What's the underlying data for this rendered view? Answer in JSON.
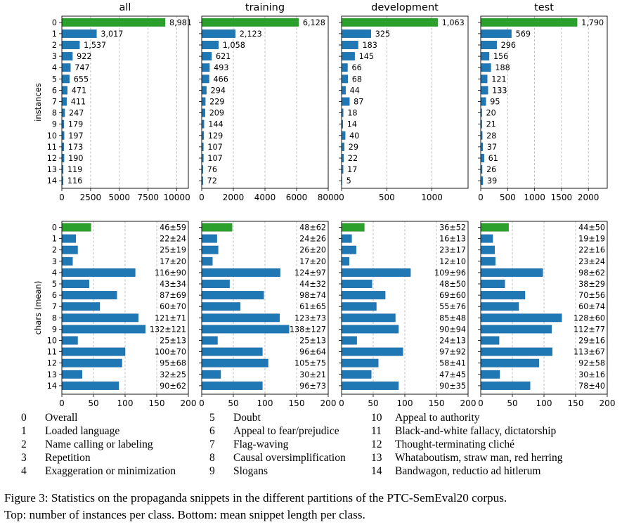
{
  "chart_data": [
    {
      "type": "bar",
      "panel": "top",
      "orientation": "horizontal",
      "title": "all",
      "ylabel": "instances",
      "categories": [
        "0",
        "1",
        "2",
        "3",
        "4",
        "5",
        "6",
        "7",
        "8",
        "9",
        "10",
        "11",
        "12",
        "13",
        "14"
      ],
      "values": [
        8981,
        3017,
        1537,
        922,
        747,
        655,
        471,
        411,
        247,
        179,
        197,
        173,
        190,
        119,
        116
      ],
      "value_labels": [
        "8,981",
        "3,017",
        "1,537",
        "922",
        "747",
        "655",
        "471",
        "411",
        "247",
        "179",
        "197",
        "173",
        "190",
        "119",
        "116"
      ],
      "xlim": [
        0,
        11000
      ],
      "xticks": [
        0,
        2500,
        5000,
        7500,
        10000
      ],
      "xtick_labels": [
        "0",
        "2500",
        "5000",
        "7500",
        "10000"
      ],
      "grid": "vertical-dashed"
    },
    {
      "type": "bar",
      "panel": "top",
      "orientation": "horizontal",
      "title": "training",
      "categories": [
        "0",
        "1",
        "2",
        "3",
        "4",
        "5",
        "6",
        "7",
        "8",
        "9",
        "10",
        "11",
        "12",
        "13",
        "14"
      ],
      "values": [
        6128,
        2123,
        1058,
        621,
        493,
        466,
        294,
        229,
        209,
        144,
        129,
        107,
        107,
        76,
        72
      ],
      "value_labels": [
        "6,128",
        "2,123",
        "1,058",
        "621",
        "493",
        "466",
        "294",
        "229",
        "209",
        "144",
        "129",
        "107",
        "107",
        "76",
        "72"
      ],
      "xlim": [
        0,
        8000
      ],
      "xticks": [
        0,
        2000,
        4000,
        6000,
        8000
      ],
      "xtick_labels": [
        "0",
        "2000",
        "4000",
        "6000",
        "8000"
      ],
      "grid": "vertical-dashed"
    },
    {
      "type": "bar",
      "panel": "top",
      "orientation": "horizontal",
      "title": "development",
      "categories": [
        "0",
        "1",
        "2",
        "3",
        "4",
        "5",
        "6",
        "7",
        "8",
        "9",
        "10",
        "11",
        "12",
        "13",
        "14"
      ],
      "values": [
        1063,
        325,
        183,
        145,
        66,
        68,
        44,
        87,
        18,
        14,
        40,
        29,
        22,
        17,
        5
      ],
      "value_labels": [
        "1,063",
        "325",
        "183",
        "145",
        "66",
        "68",
        "44",
        "87",
        "18",
        "14",
        "40",
        "29",
        "22",
        "17",
        "5"
      ],
      "xlim": [
        0,
        1400
      ],
      "xticks": [
        0,
        500,
        1000
      ],
      "xtick_labels": [
        "0",
        "500",
        "1000"
      ],
      "grid": "vertical-dashed"
    },
    {
      "type": "bar",
      "panel": "top",
      "orientation": "horizontal",
      "title": "test",
      "categories": [
        "0",
        "1",
        "2",
        "3",
        "4",
        "5",
        "6",
        "7",
        "8",
        "9",
        "10",
        "11",
        "12",
        "13",
        "14"
      ],
      "values": [
        1790,
        569,
        296,
        156,
        188,
        121,
        133,
        95,
        20,
        21,
        28,
        37,
        61,
        26,
        39
      ],
      "value_labels": [
        "1,790",
        "569",
        "296",
        "156",
        "188",
        "121",
        "133",
        "95",
        "20",
        "21",
        "28",
        "37",
        "61",
        "26",
        "39"
      ],
      "xlim": [
        0,
        2350
      ],
      "xticks": [
        0,
        500,
        1000,
        1500,
        2000
      ],
      "xtick_labels": [
        "0",
        "500",
        "1000",
        "1500",
        "2000"
      ],
      "grid": "vertical-dashed"
    },
    {
      "type": "bar",
      "panel": "bottom",
      "orientation": "horizontal",
      "ylabel": "chars (mean)",
      "categories": [
        "0",
        "1",
        "2",
        "3",
        "4",
        "5",
        "6",
        "7",
        "8",
        "9",
        "10",
        "11",
        "12",
        "13",
        "14"
      ],
      "values": [
        46,
        22,
        25,
        17,
        116,
        43,
        87,
        60,
        121,
        132,
        25,
        100,
        95,
        32,
        90
      ],
      "value_labels": [
        "46±59",
        "22±24",
        "25±19",
        "17±20",
        "116±90",
        "43±34",
        "87±69",
        "60±70",
        "121±71",
        "132±121",
        "25±13",
        "100±70",
        "95±68",
        "32±25",
        "90±62"
      ],
      "xlim": [
        0,
        200
      ],
      "xticks": [
        0,
        50,
        100,
        150,
        200
      ],
      "xtick_labels": [
        "0",
        "50",
        "100",
        "150",
        "200"
      ],
      "grid": "vertical-dashed"
    },
    {
      "type": "bar",
      "panel": "bottom",
      "orientation": "horizontal",
      "categories": [
        "0",
        "1",
        "2",
        "3",
        "4",
        "5",
        "6",
        "7",
        "8",
        "9",
        "10",
        "11",
        "12",
        "13",
        "14"
      ],
      "values": [
        48,
        24,
        26,
        17,
        124,
        44,
        98,
        61,
        123,
        138,
        25,
        96,
        105,
        30,
        96
      ],
      "value_labels": [
        "48±62",
        "24±26",
        "26±20",
        "17±20",
        "124±97",
        "44±32",
        "98±74",
        "61±65",
        "123±73",
        "138±127",
        "25±13",
        "96±64",
        "105±75",
        "30±21",
        "96±73"
      ],
      "xlim": [
        0,
        200
      ],
      "xticks": [
        0,
        50,
        100,
        150,
        200
      ],
      "xtick_labels": [
        "0",
        "50",
        "100",
        "150",
        "200"
      ],
      "grid": "vertical-dashed"
    },
    {
      "type": "bar",
      "panel": "bottom",
      "orientation": "horizontal",
      "categories": [
        "0",
        "1",
        "2",
        "3",
        "4",
        "5",
        "6",
        "7",
        "8",
        "9",
        "10",
        "11",
        "12",
        "13",
        "14"
      ],
      "values": [
        36,
        16,
        23,
        12,
        109,
        48,
        69,
        55,
        85,
        90,
        24,
        97,
        58,
        47,
        90
      ],
      "value_labels": [
        "36±52",
        "16±13",
        "23±17",
        "12±10",
        "109±96",
        "48±50",
        "69±60",
        "55±76",
        "85±48",
        "90±94",
        "24±13",
        "97±92",
        "58±41",
        "47±45",
        "90±35"
      ],
      "xlim": [
        0,
        200
      ],
      "xticks": [
        0,
        50,
        100,
        150,
        200
      ],
      "xtick_labels": [
        "0",
        "50",
        "100",
        "150",
        "200"
      ],
      "grid": "vertical-dashed"
    },
    {
      "type": "bar",
      "panel": "bottom",
      "orientation": "horizontal",
      "categories": [
        "0",
        "1",
        "2",
        "3",
        "4",
        "5",
        "6",
        "7",
        "8",
        "9",
        "10",
        "11",
        "12",
        "13",
        "14"
      ],
      "values": [
        44,
        19,
        22,
        23,
        98,
        38,
        70,
        60,
        128,
        112,
        29,
        113,
        92,
        30,
        78
      ],
      "value_labels": [
        "44±50",
        "19±19",
        "22±16",
        "23±24",
        "98±62",
        "38±29",
        "70±56",
        "60±74",
        "128±60",
        "112±77",
        "29±16",
        "113±67",
        "92±58",
        "30±16",
        "78±40"
      ],
      "xlim": [
        0,
        200
      ],
      "xticks": [
        0,
        50,
        100,
        150,
        200
      ],
      "xtick_labels": [
        "0",
        "50",
        "100",
        "150",
        "200"
      ],
      "grid": "vertical-dashed"
    }
  ],
  "colors": {
    "class0": "#2ca02c",
    "other": "#1f77b4",
    "grid": "#b0b0b0"
  },
  "legend": {
    "items": [
      {
        "num": "0",
        "label": "Overall"
      },
      {
        "num": "1",
        "label": "Loaded language"
      },
      {
        "num": "2",
        "label": "Name calling or labeling"
      },
      {
        "num": "3",
        "label": "Repetition"
      },
      {
        "num": "4",
        "label": "Exaggeration or minimization"
      },
      {
        "num": "5",
        "label": "Doubt"
      },
      {
        "num": "6",
        "label": "Appeal to fear/prejudice"
      },
      {
        "num": "7",
        "label": "Flag-waving"
      },
      {
        "num": "8",
        "label": "Causal oversimplification"
      },
      {
        "num": "9",
        "label": "Slogans"
      },
      {
        "num": "10",
        "label": "Appeal to authority"
      },
      {
        "num": "11",
        "label": "Black-and-white fallacy, dictatorship"
      },
      {
        "num": "12",
        "label": "Thought-terminating cliché"
      },
      {
        "num": "13",
        "label": "Whataboutism, straw man, red herring"
      },
      {
        "num": "14",
        "label": "Bandwagon, reductio ad hitlerum"
      }
    ]
  },
  "caption": {
    "line1": "Figure 3: Statistics on the propaganda snippets in the different partitions of the PTC-SemEval20 corpus.",
    "line2": "Top: number of instances per class. Bottom: mean snippet length per class."
  }
}
